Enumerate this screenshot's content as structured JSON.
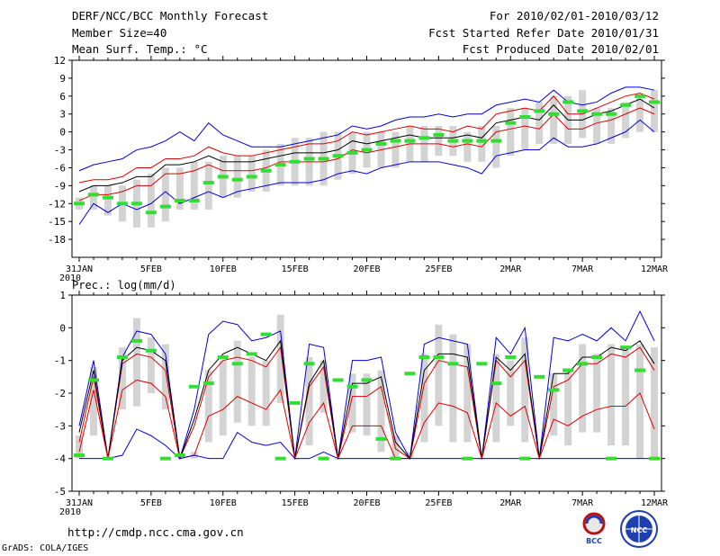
{
  "header": {
    "title": "DERF/NCC/BCC Monthly Forecast",
    "member_size": "Member Size=40",
    "variable": "Mean Surf. Temp.: °C",
    "period": "For 2010/02/01-2010/03/12",
    "start_date": "Fcst Started Refer Date 2010/01/31",
    "produced_date": "Fcst Produced Date 2010/02/01"
  },
  "footer": {
    "url": "http://cmdp.ncc.cma.gov.cn",
    "grads": "GrADS: COLA/IGES",
    "logo_bcc": "BCC",
    "logo_ncc": "NCC"
  },
  "colors": {
    "envelope": "#0000dd",
    "spread": "#dd0000",
    "mean": "#000000",
    "box": "#d3d3d3",
    "obs": "#33dd33"
  },
  "chart_data": [
    {
      "type": "line",
      "title": "Mean Surf. Temp.: °C",
      "ylim": [
        -21,
        12
      ],
      "yticks": [
        12,
        9,
        6,
        3,
        0,
        -3,
        -6,
        -9,
        -12,
        -15,
        -18
      ],
      "ytick_labels": [
        "12",
        "9",
        "6",
        "3",
        "0",
        "-3",
        "-6",
        "-9",
        "-12",
        "-15",
        "-18"
      ],
      "xlim": [
        0,
        41
      ],
      "xticks": [
        0,
        5,
        10,
        15,
        20,
        25,
        30,
        35,
        40
      ],
      "xtick_labels": [
        "31JAN",
        "5FEB",
        "10FEB",
        "15FEB",
        "20FEB",
        "25FEB",
        "2MAR",
        "7MAR",
        "12MAR"
      ],
      "year_label": "2010",
      "box_low": [
        -13,
        -13,
        -14,
        -15,
        -16,
        -16,
        -15,
        -13,
        -13,
        -13,
        -11,
        -11,
        -10,
        -10,
        -9,
        -9,
        -9,
        -9,
        -8,
        -7,
        -6,
        -6,
        -6,
        -5,
        -5,
        -4,
        -4,
        -5,
        -5,
        -6,
        -4,
        -3,
        -2,
        -2,
        -2,
        -1,
        -2,
        -2,
        -1,
        0,
        0
      ],
      "box_high": [
        -11,
        -9,
        -9,
        -9,
        -8,
        -7,
        -6,
        -6,
        -5,
        -5,
        -4,
        -4,
        -4,
        -3,
        -2,
        -1,
        -1,
        0,
        0,
        0,
        0,
        0,
        0,
        1,
        1,
        1,
        1,
        0,
        1,
        1,
        4,
        4,
        5,
        6,
        6,
        7,
        4,
        4,
        5,
        6,
        7
      ],
      "series": [
        {
          "name": "max",
          "color": "#0000dd",
          "values": [
            -6.5,
            -5.5,
            -5,
            -4.5,
            -3,
            -2.5,
            -1.5,
            0,
            -1.5,
            1.5,
            -0.5,
            -1.5,
            -2.5,
            -2.5,
            -2.5,
            -2,
            -1.5,
            -1,
            -0.5,
            1,
            0.5,
            1,
            2,
            2.5,
            2.5,
            3,
            2.5,
            3,
            3,
            4.5,
            5,
            5.5,
            5,
            7,
            5,
            4.5,
            5,
            6.5,
            7.5,
            7.5,
            7
          ]
        },
        {
          "name": "upper",
          "color": "#dd0000",
          "values": [
            -8.5,
            -8,
            -8,
            -7.5,
            -6,
            -6,
            -4.5,
            -4.5,
            -4,
            -2.5,
            -3.5,
            -4,
            -4,
            -3.5,
            -3,
            -2.5,
            -2,
            -2,
            -1.5,
            0,
            -0.5,
            0,
            0.5,
            1,
            0.5,
            0.5,
            0,
            1,
            0.5,
            3,
            3.5,
            4,
            3.5,
            6,
            3,
            3,
            4,
            5,
            6,
            6.5,
            5.5
          ]
        },
        {
          "name": "mean",
          "color": "#000000",
          "values": [
            -10,
            -9,
            -9,
            -8.5,
            -7.5,
            -7.5,
            -5.5,
            -5.5,
            -5,
            -4,
            -5,
            -5,
            -5,
            -4.5,
            -4,
            -3.5,
            -3.5,
            -3.5,
            -3,
            -1.5,
            -2,
            -1.5,
            -1,
            -0.5,
            -1,
            -1,
            -1,
            -0.5,
            -1,
            1.5,
            2,
            2.5,
            2,
            4.5,
            2,
            2,
            3,
            3.5,
            4.5,
            5.5,
            4
          ]
        },
        {
          "name": "lower",
          "color": "#dd0000",
          "values": [
            -11.5,
            -10.5,
            -10.5,
            -10,
            -9,
            -9,
            -7,
            -7,
            -6.5,
            -5.5,
            -6.5,
            -6.5,
            -6.5,
            -6,
            -5,
            -5,
            -5,
            -5,
            -4.5,
            -3,
            -3.5,
            -3,
            -2.5,
            -2,
            -2,
            -2,
            -2.5,
            -2,
            -2.5,
            0,
            0.5,
            1,
            0.5,
            3,
            0.5,
            0.5,
            1.5,
            2,
            3,
            4,
            3
          ]
        },
        {
          "name": "min",
          "color": "#0000dd",
          "values": [
            -15.5,
            -12,
            -13.5,
            -12,
            -13,
            -12,
            -10,
            -12,
            -11,
            -10,
            -11,
            -10,
            -9.5,
            -9,
            -8.5,
            -8.5,
            -8.5,
            -8,
            -7,
            -6.5,
            -7,
            -6,
            -5.5,
            -5,
            -5,
            -5,
            -5.5,
            -6,
            -7,
            -4,
            -3.5,
            -3,
            -3,
            -1,
            -2.5,
            -2.5,
            -2,
            -1,
            0,
            2,
            0
          ]
        }
      ],
      "obs": [
        -12,
        -10.5,
        -11,
        -12,
        -12,
        -13.5,
        -12.5,
        -11.5,
        -11.5,
        -8.5,
        -7.5,
        -8,
        -7.5,
        -6.5,
        -5.5,
        -5,
        -4.5,
        -4.5,
        -4,
        -3.5,
        -3,
        -2,
        -1.5,
        -1.5,
        -1,
        -0.5,
        -1.5,
        -1.5,
        -1.5,
        -1.5,
        1.5,
        2.5,
        3.5,
        3,
        5,
        3.5,
        3,
        3,
        4.5,
        6,
        5
      ]
    },
    {
      "type": "line",
      "title": "Prec.: log(mm/d)",
      "ylim": [
        -5,
        1
      ],
      "yticks": [
        1,
        0,
        -1,
        -2,
        -3,
        -4,
        -5
      ],
      "ytick_labels": [
        "1",
        "0",
        "-1",
        "-2",
        "-3",
        "-4",
        "-5"
      ],
      "xlim": [
        0,
        41
      ],
      "xticks": [
        0,
        5,
        10,
        15,
        20,
        25,
        30,
        35,
        40
      ],
      "xtick_labels": [
        "31JAN",
        "5FEB",
        "10FEB",
        "15FEB",
        "20FEB",
        "25FEB",
        "2MAR",
        "7MAR",
        "12MAR"
      ],
      "year_label": "2010",
      "box_low": [
        -4,
        -3.3,
        -4,
        -2.5,
        -2.4,
        -2,
        -2.5,
        -4,
        -4,
        -3.5,
        -3.3,
        -2.9,
        -3,
        -3,
        -2.3,
        -4,
        -3.6,
        -2.6,
        -4,
        -3.2,
        -3.3,
        -3.8,
        -4,
        -4,
        -3.5,
        -3,
        -3.5,
        -3.5,
        -4,
        -3.5,
        -3,
        -3.5,
        -4,
        -3.3,
        -3.6,
        -3.2,
        -3.2,
        -3.6,
        -3.6,
        -4,
        -4
      ],
      "box_high": [
        -3.3,
        -1.2,
        -4,
        -0.6,
        0.3,
        -0.3,
        -0.5,
        -4,
        -3.8,
        -1.3,
        -1,
        -0.4,
        -0.9,
        -1,
        0.4,
        -4,
        -0.9,
        -1,
        -4,
        -1.4,
        -1.4,
        -1.3,
        -3.3,
        -3.8,
        -0.8,
        0.1,
        -0.2,
        -0.5,
        -4,
        -0.8,
        -1,
        -0.3,
        -4,
        -1.4,
        -1.3,
        -0.5,
        -0.8,
        -0.5,
        -0.6,
        -0.5,
        -0.6
      ],
      "series": [
        {
          "name": "max",
          "color": "#0000dd",
          "values": [
            -3,
            -1,
            -4,
            -0.9,
            -0.1,
            -0.2,
            -0.8,
            -4,
            -2.5,
            -0.2,
            0.2,
            0.1,
            -0.4,
            -0.3,
            -0.1,
            -4,
            -0.5,
            -0.6,
            -4,
            -1,
            -1,
            -0.9,
            -3.2,
            -4,
            -0.5,
            -0.3,
            -0.4,
            -0.5,
            -4,
            -0.3,
            -0.8,
            0,
            -4,
            -0.3,
            -0.4,
            -0.2,
            -0.4,
            0,
            -0.4,
            0.5,
            -0.4
          ]
        },
        {
          "name": "upper",
          "color": "#dd0000",
          "values": [
            -3.5,
            -1.5,
            -4,
            -1.1,
            -0.8,
            -0.9,
            -1.3,
            -4,
            -3,
            -1.5,
            -1,
            -0.9,
            -1,
            -1.2,
            -0.6,
            -4,
            -1.8,
            -1.2,
            -4,
            -2.1,
            -2.1,
            -1.8,
            -3.7,
            -4,
            -1.7,
            -1,
            -1.1,
            -1.2,
            -4,
            -1,
            -1.5,
            -1,
            -4,
            -1.8,
            -1.6,
            -1.1,
            -1.1,
            -0.8,
            -0.9,
            -0.6,
            -1.3
          ]
        },
        {
          "name": "mean",
          "color": "#000000",
          "values": [
            -3.2,
            -1.3,
            -4,
            -1,
            -0.6,
            -0.7,
            -1,
            -4,
            -2.8,
            -1.3,
            -0.8,
            -0.6,
            -0.8,
            -1,
            -0.4,
            -4,
            -1.7,
            -1,
            -4,
            -1.7,
            -1.7,
            -1.5,
            -3.5,
            -4,
            -1.3,
            -0.8,
            -0.8,
            -0.9,
            -4,
            -0.9,
            -1.3,
            -0.8,
            -4,
            -1.4,
            -1.4,
            -0.9,
            -0.9,
            -0.6,
            -0.7,
            -0.4,
            -1.1
          ]
        },
        {
          "name": "lower",
          "color": "#dd0000",
          "values": [
            -3.8,
            -1.9,
            -4,
            -1.9,
            -1.6,
            -1.7,
            -2.1,
            -4,
            -3.9,
            -2.7,
            -2.5,
            -2.1,
            -2.3,
            -2.5,
            -1.9,
            -4,
            -2.9,
            -2.3,
            -4,
            -3,
            -3,
            -3,
            -4,
            -4,
            -2.9,
            -2.3,
            -2.4,
            -2.6,
            -4,
            -2.3,
            -2.7,
            -2.4,
            -4,
            -2.8,
            -3,
            -2.7,
            -2.5,
            -2.4,
            -2.4,
            -2,
            -3.1
          ]
        },
        {
          "name": "min",
          "color": "#0000dd",
          "values": [
            -4,
            -4,
            -4,
            -3.9,
            -3.1,
            -3.3,
            -3.6,
            -4,
            -3.9,
            -4,
            -4,
            -3.2,
            -3.5,
            -3.6,
            -3.5,
            -4,
            -4,
            -3.8,
            -4,
            -4,
            -4,
            -4,
            -4,
            -4,
            -4,
            -4,
            -4,
            -4,
            -4,
            -4,
            -4,
            -4,
            -4,
            -4,
            -4,
            -4,
            -4,
            -4,
            -4,
            -4,
            -4
          ]
        }
      ],
      "obs": [
        -3.9,
        -1.6,
        -4,
        -0.9,
        -0.4,
        -0.7,
        -4,
        -3.9,
        -1.8,
        -1.7,
        -0.9,
        -1.1,
        -0.8,
        -0.2,
        -4,
        -2.3,
        -1.1,
        -4,
        -1.6,
        -1.8,
        -1.6,
        -3.4,
        -4,
        -1.4,
        -0.9,
        -0.9,
        -1.1,
        -4,
        -1.1,
        -1.7,
        -0.9,
        -4,
        -1.5,
        -1.9,
        -1.3,
        -1.1,
        -0.9,
        -4,
        -0.6,
        -1.3,
        -4
      ]
    }
  ]
}
